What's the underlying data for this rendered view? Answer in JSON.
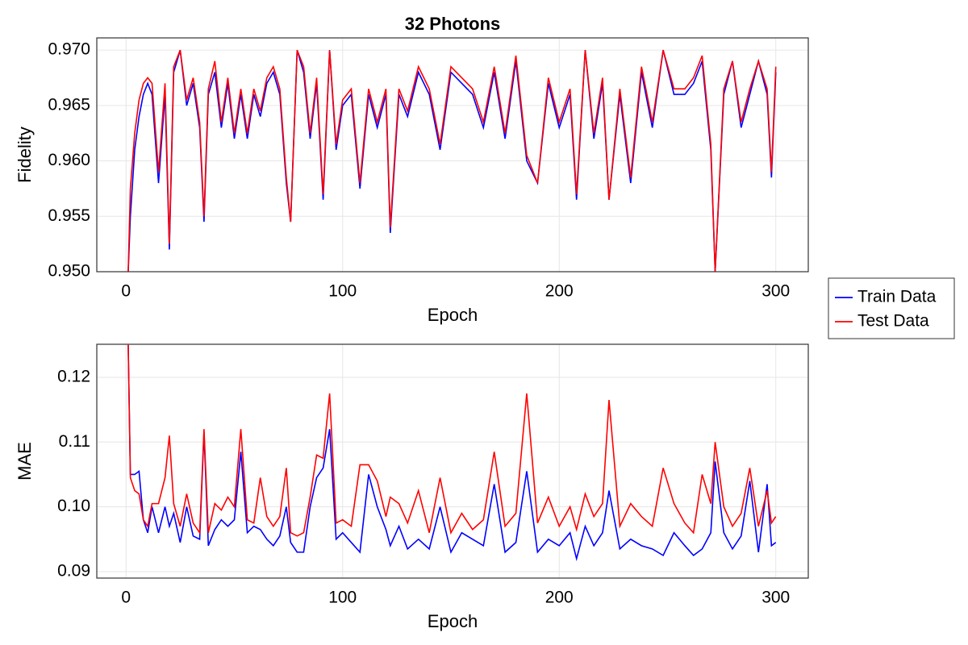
{
  "chart_data": [
    {
      "type": "line",
      "title": "32 Photons",
      "xlabel": "Epoch",
      "ylabel": "Fidelity",
      "grid": true,
      "legend": "outside right",
      "x": [
        1,
        2,
        4,
        6,
        8,
        10,
        12,
        15,
        18,
        20,
        22,
        25,
        28,
        31,
        34,
        36,
        38,
        41,
        44,
        47,
        50,
        53,
        56,
        59,
        62,
        65,
        68,
        71,
        74,
        76,
        79,
        82,
        85,
        88,
        91,
        94,
        97,
        100,
        104,
        108,
        112,
        116,
        120,
        122,
        126,
        130,
        135,
        140,
        145,
        150,
        155,
        160,
        165,
        170,
        175,
        180,
        185,
        190,
        195,
        200,
        205,
        208,
        212,
        216,
        220,
        223,
        228,
        233,
        238,
        243,
        248,
        253,
        258,
        262,
        266,
        270,
        272,
        276,
        280,
        284,
        288,
        292,
        296,
        298,
        300
      ],
      "xlim": [
        -13.5,
        315
      ],
      "xticks": [
        0,
        100,
        200,
        300
      ],
      "ylim": [
        0.95,
        0.9711
      ],
      "yticks": [
        {
          "value": 0.95,
          "label": "0.950"
        },
        0.955,
        {
          "value": 0.96,
          "label": "0.960"
        },
        0.965,
        {
          "value": 0.97,
          "label": "0.970"
        }
      ],
      "series": [
        {
          "name": "Train Data",
          "color": "#0000ff",
          "values": [
            0.95,
            0.955,
            0.961,
            0.964,
            0.966,
            0.967,
            0.966,
            0.958,
            0.966,
            0.952,
            0.968,
            0.97,
            0.965,
            0.967,
            0.963,
            0.9545,
            0.966,
            0.968,
            0.963,
            0.967,
            0.962,
            0.966,
            0.962,
            0.966,
            0.964,
            0.967,
            0.968,
            0.966,
            0.958,
            0.9545,
            0.97,
            0.968,
            0.962,
            0.967,
            0.9565,
            0.97,
            0.961,
            0.965,
            0.966,
            0.9575,
            0.966,
            0.963,
            0.966,
            0.9535,
            0.966,
            0.964,
            0.968,
            0.966,
            0.961,
            0.968,
            0.967,
            0.966,
            0.963,
            0.968,
            0.962,
            0.969,
            0.96,
            0.958,
            0.967,
            0.963,
            0.966,
            0.9565,
            0.97,
            0.962,
            0.967,
            0.9565,
            0.966,
            0.958,
            0.968,
            0.963,
            0.97,
            0.966,
            0.966,
            0.967,
            0.969,
            0.961,
            0.95,
            0.966,
            0.969,
            0.963,
            0.966,
            0.969,
            0.966,
            0.9585,
            0.968
          ]
        },
        {
          "name": "Test Data",
          "color": "#ff0000",
          "values": [
            0.95,
            0.9575,
            0.9625,
            0.9655,
            0.967,
            0.9675,
            0.967,
            0.959,
            0.967,
            0.9525,
            0.9685,
            0.97,
            0.9655,
            0.9675,
            0.9635,
            0.955,
            0.9665,
            0.969,
            0.9635,
            0.9675,
            0.9625,
            0.9665,
            0.9625,
            0.9665,
            0.9645,
            0.9675,
            0.9685,
            0.9665,
            0.9585,
            0.9545,
            0.97,
            0.9685,
            0.9625,
            0.9675,
            0.957,
            0.97,
            0.9615,
            0.9655,
            0.9665,
            0.958,
            0.9665,
            0.9635,
            0.9665,
            0.954,
            0.9665,
            0.9645,
            0.9685,
            0.9665,
            0.9615,
            0.9685,
            0.9675,
            0.9665,
            0.9635,
            0.9685,
            0.9625,
            0.9695,
            0.9605,
            0.958,
            0.9675,
            0.9635,
            0.9665,
            0.957,
            0.97,
            0.9625,
            0.9675,
            0.9565,
            0.9665,
            0.9585,
            0.9685,
            0.9635,
            0.97,
            0.9665,
            0.9665,
            0.9675,
            0.9695,
            0.9615,
            0.95,
            0.9665,
            0.969,
            0.9635,
            0.9665,
            0.969,
            0.9665,
            0.959,
            0.9685
          ]
        }
      ]
    },
    {
      "type": "line",
      "xlabel": "Epoch",
      "ylabel": "MAE",
      "grid": true,
      "x": [
        1,
        2,
        4,
        6,
        8,
        10,
        12,
        15,
        18,
        20,
        22,
        25,
        28,
        31,
        34,
        36,
        38,
        41,
        44,
        47,
        50,
        53,
        56,
        59,
        62,
        65,
        68,
        71,
        74,
        76,
        79,
        82,
        85,
        88,
        91,
        94,
        97,
        100,
        104,
        108,
        112,
        116,
        120,
        122,
        126,
        130,
        135,
        140,
        145,
        150,
        155,
        160,
        165,
        170,
        175,
        180,
        185,
        190,
        195,
        200,
        205,
        208,
        212,
        216,
        220,
        223,
        228,
        233,
        238,
        243,
        248,
        253,
        258,
        262,
        266,
        270,
        272,
        276,
        280,
        284,
        288,
        292,
        296,
        298,
        300
      ],
      "xlim": [
        -13.5,
        315
      ],
      "xticks": [
        0,
        100,
        200,
        300
      ],
      "ylim": [
        0.089,
        0.1251
      ],
      "yticks": [
        0.09,
        {
          "value": 0.1,
          "label": "0.10"
        },
        0.11,
        0.12
      ],
      "series": [
        {
          "name": "Train Data",
          "color": "#0000ff",
          "values": [
            0.125,
            0.105,
            0.105,
            0.1055,
            0.098,
            0.096,
            0.1,
            0.096,
            0.1,
            0.097,
            0.099,
            0.0945,
            0.1,
            0.0955,
            0.095,
            0.1115,
            0.094,
            0.0965,
            0.098,
            0.097,
            0.098,
            0.1085,
            0.096,
            0.097,
            0.0965,
            0.095,
            0.094,
            0.0955,
            0.1,
            0.0945,
            0.093,
            0.093,
            0.1,
            0.1045,
            0.106,
            0.112,
            0.095,
            0.096,
            0.0945,
            0.093,
            0.105,
            0.1,
            0.0965,
            0.094,
            0.097,
            0.0935,
            0.095,
            0.0935,
            0.1,
            0.093,
            0.096,
            0.095,
            0.094,
            0.1035,
            0.093,
            0.0945,
            0.1055,
            0.093,
            0.095,
            0.094,
            0.096,
            0.092,
            0.097,
            0.094,
            0.096,
            0.1025,
            0.0935,
            0.095,
            0.094,
            0.0935,
            0.0925,
            0.096,
            0.094,
            0.0925,
            0.0935,
            0.096,
            0.107,
            0.096,
            0.0935,
            0.0955,
            0.104,
            0.093,
            0.1035,
            0.094,
            0.0945
          ]
        },
        {
          "name": "Test Data",
          "color": "#ff0000",
          "values": [
            0.125,
            0.1045,
            0.1025,
            0.102,
            0.098,
            0.097,
            0.1005,
            0.1005,
            0.1045,
            0.111,
            0.1005,
            0.097,
            0.102,
            0.0975,
            0.096,
            0.112,
            0.096,
            0.1005,
            0.0995,
            0.1015,
            0.1,
            0.112,
            0.098,
            0.0975,
            0.1045,
            0.0985,
            0.097,
            0.0985,
            0.106,
            0.096,
            0.0955,
            0.096,
            0.1015,
            0.108,
            0.1075,
            0.1175,
            0.0975,
            0.098,
            0.097,
            0.1065,
            0.1065,
            0.104,
            0.0985,
            0.1015,
            0.1005,
            0.0975,
            0.1025,
            0.096,
            0.1045,
            0.096,
            0.099,
            0.0965,
            0.098,
            0.1085,
            0.097,
            0.099,
            0.1175,
            0.0975,
            0.1015,
            0.097,
            0.1,
            0.0965,
            0.102,
            0.0985,
            0.1005,
            0.1165,
            0.097,
            0.1005,
            0.0985,
            0.097,
            0.106,
            0.1005,
            0.0975,
            0.096,
            0.105,
            0.1005,
            0.11,
            0.1,
            0.097,
            0.099,
            0.106,
            0.097,
            0.1025,
            0.0975,
            0.0985
          ]
        }
      ]
    }
  ]
}
